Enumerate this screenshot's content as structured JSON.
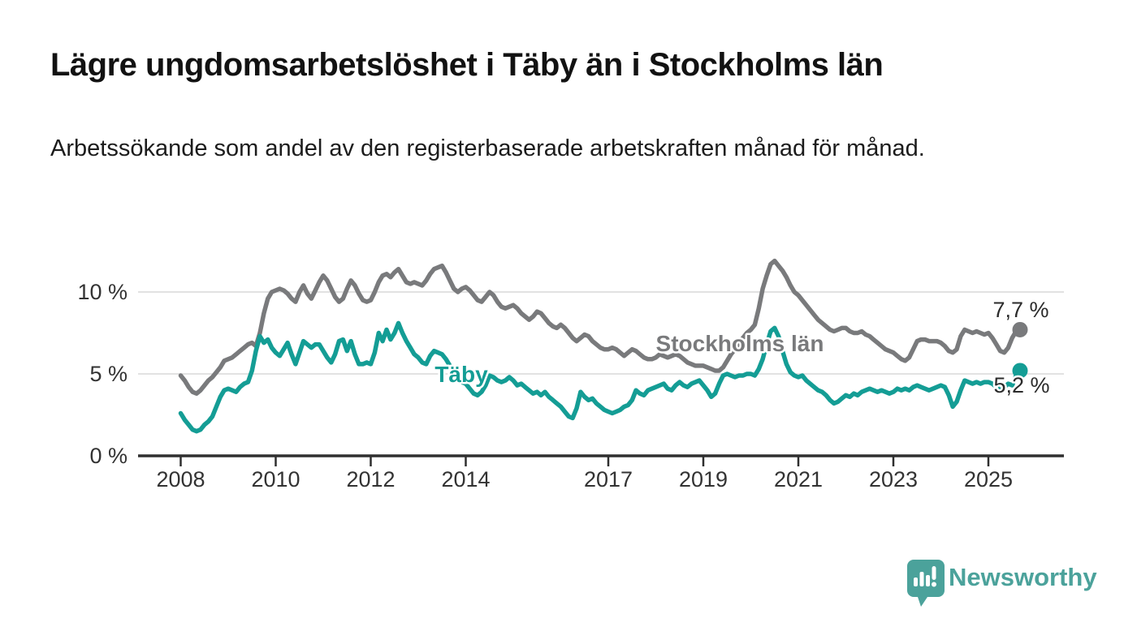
{
  "footer": {
    "brand": "Newsworthy"
  },
  "colors": {
    "taby_line": "#149d95",
    "stockholm_line": "#797a7c",
    "grid": "#d8d8d8",
    "axis": "#2f2f2f",
    "tick_text": "#333333",
    "value_text": "#2b2b2b",
    "logo": "#4ba29b"
  },
  "chart_data": {
    "type": "line",
    "title": "Lägre ungdomsarbetslöshet i Täby än i Stockholms län",
    "subtitle": "Arbetssökande som andel av den registerbaserade arbetskraften månad för månad.",
    "x_start": "2008-01",
    "x_end": "2025-09",
    "points_per_year": 12,
    "x_tick_years": [
      2008,
      2010,
      2012,
      2014,
      2017,
      2019,
      2021,
      2023,
      2025
    ],
    "y_ticks": [
      {
        "value": 0,
        "label": "0 %"
      },
      {
        "value": 5,
        "label": "5 %"
      },
      {
        "value": 10,
        "label": "10 %"
      }
    ],
    "ylim": [
      0,
      12.4
    ],
    "grid": "horizontal",
    "legend_position": "inline-labels",
    "series": [
      {
        "name": "Stockholms län",
        "color": "#797a7c",
        "end_label": "7,7 %",
        "end_value": 7.7,
        "values": [
          4.9,
          4.6,
          4.2,
          3.9,
          3.8,
          4.0,
          4.3,
          4.6,
          4.8,
          5.1,
          5.4,
          5.8,
          5.9,
          6.0,
          6.2,
          6.4,
          6.6,
          6.8,
          6.9,
          6.7,
          7.5,
          8.7,
          9.6,
          10.0,
          10.1,
          10.2,
          10.1,
          9.9,
          9.6,
          9.4,
          10.0,
          10.4,
          9.9,
          9.6,
          10.1,
          10.6,
          11.0,
          10.7,
          10.2,
          9.7,
          9.4,
          9.6,
          10.2,
          10.7,
          10.4,
          9.9,
          9.5,
          9.4,
          9.5,
          10.0,
          10.6,
          11.0,
          11.1,
          10.9,
          11.2,
          11.4,
          11.0,
          10.6,
          10.5,
          10.6,
          10.5,
          10.4,
          10.7,
          11.1,
          11.4,
          11.5,
          11.6,
          11.2,
          10.7,
          10.2,
          10.0,
          10.2,
          10.3,
          10.1,
          9.8,
          9.5,
          9.4,
          9.7,
          10.0,
          9.8,
          9.4,
          9.1,
          9.0,
          9.1,
          9.2,
          9.0,
          8.7,
          8.5,
          8.3,
          8.5,
          8.8,
          8.7,
          8.4,
          8.1,
          7.9,
          7.8,
          8.0,
          7.8,
          7.5,
          7.2,
          7.0,
          7.2,
          7.4,
          7.3,
          7.0,
          6.8,
          6.6,
          6.5,
          6.5,
          6.6,
          6.5,
          6.3,
          6.1,
          6.3,
          6.5,
          6.4,
          6.2,
          6.0,
          5.9,
          5.9,
          6.0,
          6.2,
          6.1,
          6.0,
          6.1,
          6.2,
          6.1,
          5.9,
          5.7,
          5.6,
          5.5,
          5.5,
          5.5,
          5.4,
          5.3,
          5.2,
          5.2,
          5.4,
          5.8,
          6.2,
          6.5,
          6.9,
          7.2,
          7.5,
          7.7,
          8.0,
          9.0,
          10.2,
          11.0,
          11.7,
          11.9,
          11.6,
          11.3,
          10.9,
          10.4,
          10.0,
          9.8,
          9.5,
          9.2,
          8.9,
          8.6,
          8.3,
          8.1,
          7.9,
          7.7,
          7.6,
          7.7,
          7.8,
          7.8,
          7.6,
          7.5,
          7.5,
          7.6,
          7.4,
          7.3,
          7.1,
          6.9,
          6.7,
          6.5,
          6.4,
          6.3,
          6.1,
          5.9,
          5.8,
          6.0,
          6.5,
          7.0,
          7.1,
          7.1,
          7.0,
          7.0,
          7.0,
          6.9,
          6.7,
          6.4,
          6.3,
          6.5,
          7.3,
          7.7,
          7.6,
          7.5,
          7.6,
          7.5,
          7.4,
          7.5,
          7.2,
          6.8,
          6.4,
          6.3,
          6.6,
          7.2,
          7.6,
          7.7
        ]
      },
      {
        "name": "Täby",
        "color": "#149d95",
        "end_label": "5,2 %",
        "end_value": 5.2,
        "values": [
          2.6,
          2.2,
          1.9,
          1.6,
          1.5,
          1.6,
          1.9,
          2.1,
          2.4,
          3.0,
          3.6,
          4.0,
          4.1,
          4.0,
          3.9,
          4.2,
          4.4,
          4.5,
          5.2,
          6.4,
          7.3,
          6.9,
          7.1,
          6.6,
          6.3,
          6.1,
          6.5,
          6.9,
          6.2,
          5.6,
          6.3,
          7.0,
          6.8,
          6.6,
          6.8,
          6.8,
          6.4,
          6.0,
          5.7,
          6.2,
          7.0,
          7.1,
          6.4,
          7.0,
          6.2,
          5.6,
          5.6,
          5.7,
          5.6,
          6.3,
          7.5,
          7.0,
          7.7,
          7.1,
          7.5,
          8.1,
          7.5,
          7.0,
          6.6,
          6.2,
          6.0,
          5.7,
          5.6,
          6.1,
          6.4,
          6.3,
          6.2,
          5.9,
          5.5,
          5.1,
          4.8,
          4.5,
          4.4,
          4.1,
          3.8,
          3.7,
          3.9,
          4.3,
          4.9,
          4.8,
          4.6,
          4.5,
          4.6,
          4.8,
          4.6,
          4.3,
          4.4,
          4.2,
          4.0,
          3.8,
          3.9,
          3.7,
          3.9,
          3.6,
          3.4,
          3.2,
          3.0,
          2.7,
          2.4,
          2.3,
          2.9,
          3.9,
          3.6,
          3.4,
          3.5,
          3.2,
          3.0,
          2.8,
          2.7,
          2.6,
          2.7,
          2.8,
          3.0,
          3.1,
          3.4,
          4.0,
          3.8,
          3.7,
          4.0,
          4.1,
          4.2,
          4.3,
          4.4,
          4.1,
          4.0,
          4.3,
          4.5,
          4.3,
          4.2,
          4.4,
          4.5,
          4.6,
          4.3,
          4.0,
          3.6,
          3.8,
          4.4,
          4.9,
          5.0,
          4.9,
          4.8,
          4.9,
          4.9,
          5.0,
          5.0,
          4.9,
          5.3,
          5.9,
          6.8,
          7.6,
          7.8,
          7.3,
          6.4,
          5.6,
          5.1,
          4.9,
          4.8,
          4.9,
          4.6,
          4.4,
          4.2,
          4.0,
          3.9,
          3.7,
          3.4,
          3.2,
          3.3,
          3.5,
          3.7,
          3.6,
          3.8,
          3.7,
          3.9,
          4.0,
          4.1,
          4.0,
          3.9,
          4.0,
          3.9,
          3.8,
          3.9,
          4.1,
          4.0,
          4.1,
          4.0,
          4.2,
          4.3,
          4.2,
          4.1,
          4.0,
          4.1,
          4.2,
          4.3,
          4.2,
          3.7,
          3.0,
          3.3,
          4.0,
          4.6,
          4.5,
          4.4,
          4.5,
          4.4,
          4.5,
          4.5,
          4.4,
          4.2,
          4.0,
          4.2,
          4.4,
          4.3,
          4.9,
          5.2
        ]
      }
    ]
  }
}
